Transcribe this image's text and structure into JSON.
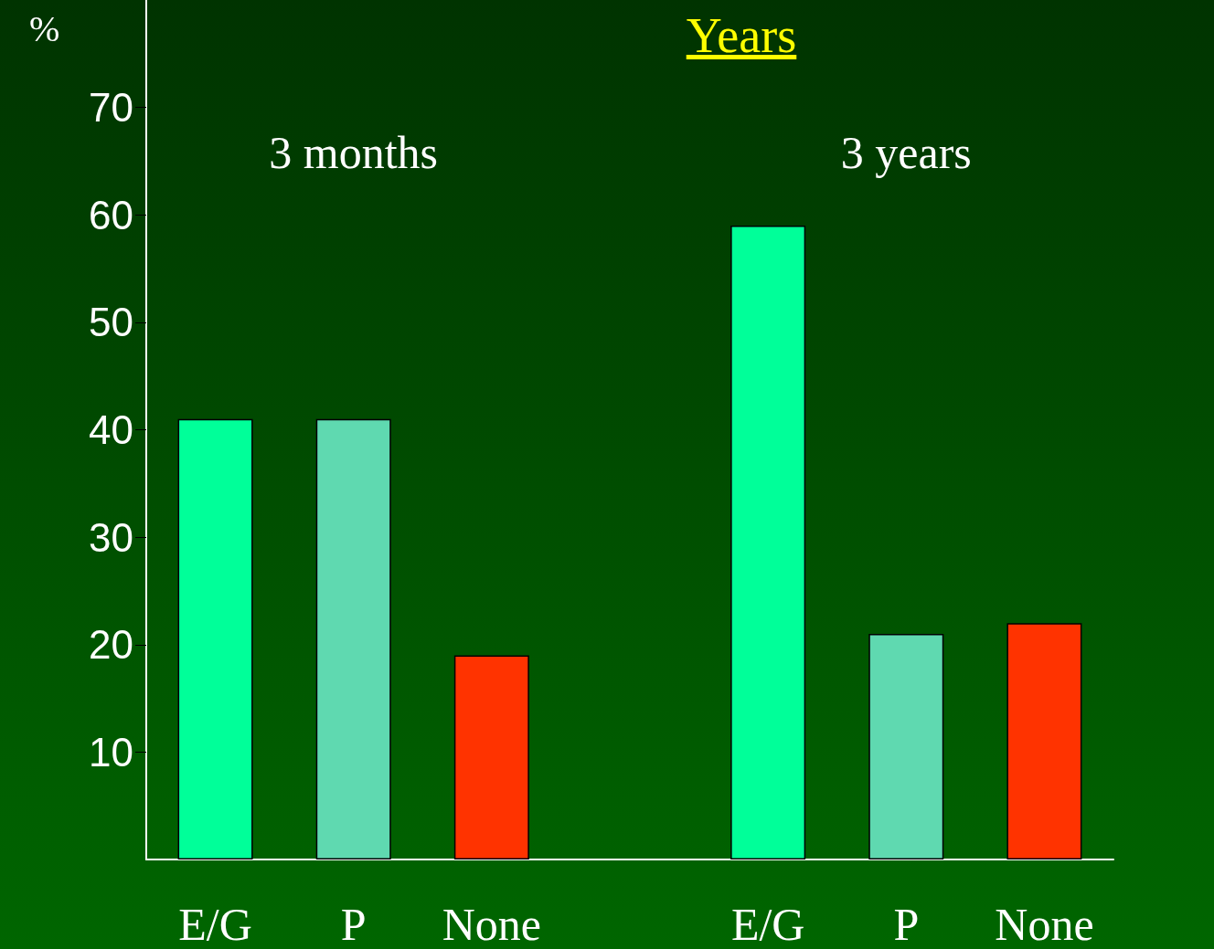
{
  "chart_data": {
    "type": "bar",
    "title": "Years",
    "ylabel": "%",
    "categories": [
      "E/G",
      "P",
      "None",
      null,
      "E/G",
      "P",
      "None"
    ],
    "values": [
      41,
      41,
      19,
      null,
      59,
      21,
      22
    ],
    "colors": [
      "#00ff99",
      "#5fd9b0",
      "#ff3300",
      "#000000",
      "#00ff99",
      "#5fd9b0",
      "#ff3300"
    ],
    "ylim": [
      0,
      80
    ],
    "yticks": [
      10,
      20,
      30,
      40,
      50,
      60,
      70
    ],
    "grid": false,
    "annotations": [
      "3 months",
      "3 years"
    ]
  }
}
